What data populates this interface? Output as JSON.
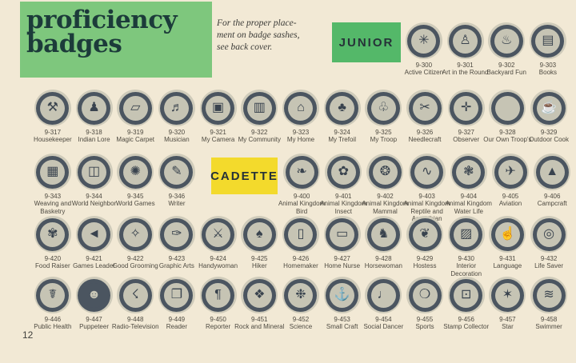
{
  "header": {
    "title_line1": "proficiency",
    "title_line2": "badges"
  },
  "note": {
    "line1": "For the proper place-",
    "line2": "ment on badge sashes,",
    "line3": "see back cover."
  },
  "section_labels": {
    "junior": "JUNIOR",
    "cadette": "CADETTE"
  },
  "page_number": "12",
  "colors": {
    "background": "#f2e9d5",
    "header_green": "#7ec77d",
    "junior_green": "#54b869",
    "cadette_yellow": "#f3da2c",
    "title_text": "#1c3b3a",
    "note_text": "#3b3b38",
    "badge_ring": "#4b5560",
    "badge_inner": "#c6c4b4",
    "badge_halo": "#cfcbba",
    "caption_text": "#4e4a41"
  },
  "rows": [
    {
      "id": "row-junior",
      "badges": [
        {
          "code": "9-300",
          "name": "Active Citizen",
          "icon_name": "pinwheel-icon",
          "glyph": "✳"
        },
        {
          "code": "9-301",
          "name": "Art in the Round",
          "icon_name": "statue-icon",
          "glyph": "♙"
        },
        {
          "code": "9-302",
          "name": "Backyard Fun",
          "icon_name": "grill-icon",
          "glyph": "♨"
        },
        {
          "code": "9-303",
          "name": "Books",
          "icon_name": "books-icon",
          "glyph": "▤"
        }
      ]
    },
    {
      "id": "row-2",
      "badges": [
        {
          "code": "9-317",
          "name": "Housekeeper",
          "icon_name": "crossed-utensils-icon",
          "glyph": "⚒"
        },
        {
          "code": "9-318",
          "name": "Indian Lore",
          "icon_name": "indian-figure-icon",
          "glyph": "♟"
        },
        {
          "code": "9-319",
          "name": "Magic Carpet",
          "icon_name": "carpet-icon",
          "glyph": "▱"
        },
        {
          "code": "9-320",
          "name": "Musician",
          "icon_name": "music-clef-icon",
          "glyph": "♬"
        },
        {
          "code": "9-321",
          "name": "My Camera",
          "icon_name": "camera-icon",
          "glyph": "▣"
        },
        {
          "code": "9-322",
          "name": "My Community",
          "icon_name": "community-building-icon",
          "glyph": "▥"
        },
        {
          "code": "9-323",
          "name": "My Home",
          "icon_name": "house-icon",
          "glyph": "⌂"
        },
        {
          "code": "9-324",
          "name": "My Trefoil",
          "icon_name": "trefoil-icon",
          "glyph": "♣"
        },
        {
          "code": "9-325",
          "name": "My Troop",
          "icon_name": "trefoil-outline-icon",
          "glyph": "♧"
        },
        {
          "code": "9-326",
          "name": "Needlecraft",
          "icon_name": "sewing-icon",
          "glyph": "✂"
        },
        {
          "code": "9-327",
          "name": "Observer",
          "icon_name": "compass-cross-icon",
          "glyph": "✛"
        },
        {
          "code": "9-328",
          "name": "Our Own Troop's",
          "icon_name": "blank-badge",
          "glyph": ""
        },
        {
          "code": "9-329",
          "name": "Outdoor Cook",
          "icon_name": "cooking-pot-icon",
          "glyph": "☕"
        }
      ]
    },
    {
      "id": "row-3-left",
      "badges": [
        {
          "code": "9-343",
          "name": "Weaving and Basketry",
          "icon_name": "basket-icon",
          "glyph": "▦"
        },
        {
          "code": "9-344",
          "name": "World Neighbor",
          "icon_name": "world-building-icon",
          "glyph": "◫"
        },
        {
          "code": "9-345",
          "name": "World Games",
          "icon_name": "runners-icon",
          "glyph": "✺"
        },
        {
          "code": "9-346",
          "name": "Writer",
          "icon_name": "scroll-pen-icon",
          "glyph": "✎"
        }
      ]
    },
    {
      "id": "row-3-right",
      "badges": [
        {
          "code": "9-400",
          "name": "Animal Kingdom Bird",
          "icon_name": "bird-icon",
          "glyph": "❧"
        },
        {
          "code": "9-401",
          "name": "Animal Kingdom Insect",
          "icon_name": "insect-plant-icon",
          "glyph": "✿"
        },
        {
          "code": "9-402",
          "name": "Animal Kingdom Mammal",
          "icon_name": "mammal-wreath-icon",
          "glyph": "❂"
        },
        {
          "code": "9-403",
          "name": "Animal Kingdom Reptile and Amphibian",
          "icon_name": "lizard-icon",
          "glyph": "∿"
        },
        {
          "code": "9-404",
          "name": "Animal Kingdom Water Life",
          "icon_name": "shell-icon",
          "glyph": "❃"
        },
        {
          "code": "9-405",
          "name": "Aviation",
          "icon_name": "airplane-icon",
          "glyph": "✈"
        },
        {
          "code": "9-406",
          "name": "Campcraft",
          "icon_name": "pack-basket-icon",
          "glyph": "▲"
        }
      ]
    },
    {
      "id": "row-4",
      "badges": [
        {
          "code": "9-420",
          "name": "Food Raiser",
          "icon_name": "garden-icon",
          "glyph": "✾"
        },
        {
          "code": "9-421",
          "name": "Games Leader",
          "icon_name": "megaphone-icon",
          "glyph": "◄"
        },
        {
          "code": "9-422",
          "name": "Good Grooming",
          "icon_name": "mirror-shoe-icon",
          "glyph": "✧"
        },
        {
          "code": "9-423",
          "name": "Graphic Arts",
          "icon_name": "ink-roller-icon",
          "glyph": "✑"
        },
        {
          "code": "9-424",
          "name": "Handywoman",
          "icon_name": "crossed-tools-icon",
          "glyph": "⚔"
        },
        {
          "code": "9-425",
          "name": "Hiker",
          "icon_name": "trees-trail-icon",
          "glyph": "♠"
        },
        {
          "code": "9-426",
          "name": "Homemaker",
          "icon_name": "doorway-icon",
          "glyph": "▯"
        },
        {
          "code": "9-427",
          "name": "Home Nurse",
          "icon_name": "sickbed-icon",
          "glyph": "▭"
        },
        {
          "code": "9-428",
          "name": "Horsewoman",
          "icon_name": "horse-icon",
          "glyph": "♞"
        },
        {
          "code": "9-429",
          "name": "Hostess",
          "icon_name": "teapot-icon",
          "glyph": "❦"
        },
        {
          "code": "9-430",
          "name": "Interior Decoration",
          "icon_name": "paintbrush-wallpaper-icon",
          "glyph": "▨"
        },
        {
          "code": "9-431",
          "name": "Language",
          "icon_name": "signal-hand-icon",
          "glyph": "☝"
        },
        {
          "code": "9-432",
          "name": "Life Saver",
          "icon_name": "life-ring-icon",
          "glyph": "◎"
        }
      ]
    },
    {
      "id": "row-5",
      "badges": [
        {
          "code": "9-446",
          "name": "Public Health",
          "icon_name": "caduceus-icon",
          "glyph": "☤"
        },
        {
          "code": "9-447",
          "name": "Puppeteer",
          "icon_name": "puppet-head-icon",
          "glyph": "☻",
          "variant": "dark"
        },
        {
          "code": "9-448",
          "name": "Radio-Television",
          "icon_name": "antenna-tower-icon",
          "glyph": "☇"
        },
        {
          "code": "9-449",
          "name": "Reader",
          "icon_name": "open-book-icon",
          "glyph": "❐"
        },
        {
          "code": "9-450",
          "name": "Reporter",
          "icon_name": "pilcrow-icon",
          "glyph": "¶"
        },
        {
          "code": "9-451",
          "name": "Rock and Mineral",
          "icon_name": "rocks-icon",
          "glyph": "❖"
        },
        {
          "code": "9-452",
          "name": "Science",
          "icon_name": "atom-icon",
          "glyph": "❉"
        },
        {
          "code": "9-453",
          "name": "Small Craft",
          "icon_name": "anchor-icon",
          "glyph": "⚓"
        },
        {
          "code": "9-454",
          "name": "Social Dancer",
          "icon_name": "dancer-icon",
          "glyph": "♩"
        },
        {
          "code": "9-455",
          "name": "Sports",
          "icon_name": "sports-gear-icon",
          "glyph": "❍"
        },
        {
          "code": "9-456",
          "name": "Stamp Collector",
          "icon_name": "postage-stamp-icon",
          "glyph": "⊡"
        },
        {
          "code": "9-457",
          "name": "Star",
          "icon_name": "stars-icon",
          "glyph": "✶"
        },
        {
          "code": "9-458",
          "name": "Swimmer",
          "icon_name": "wave-icon",
          "glyph": "≋"
        }
      ]
    }
  ]
}
